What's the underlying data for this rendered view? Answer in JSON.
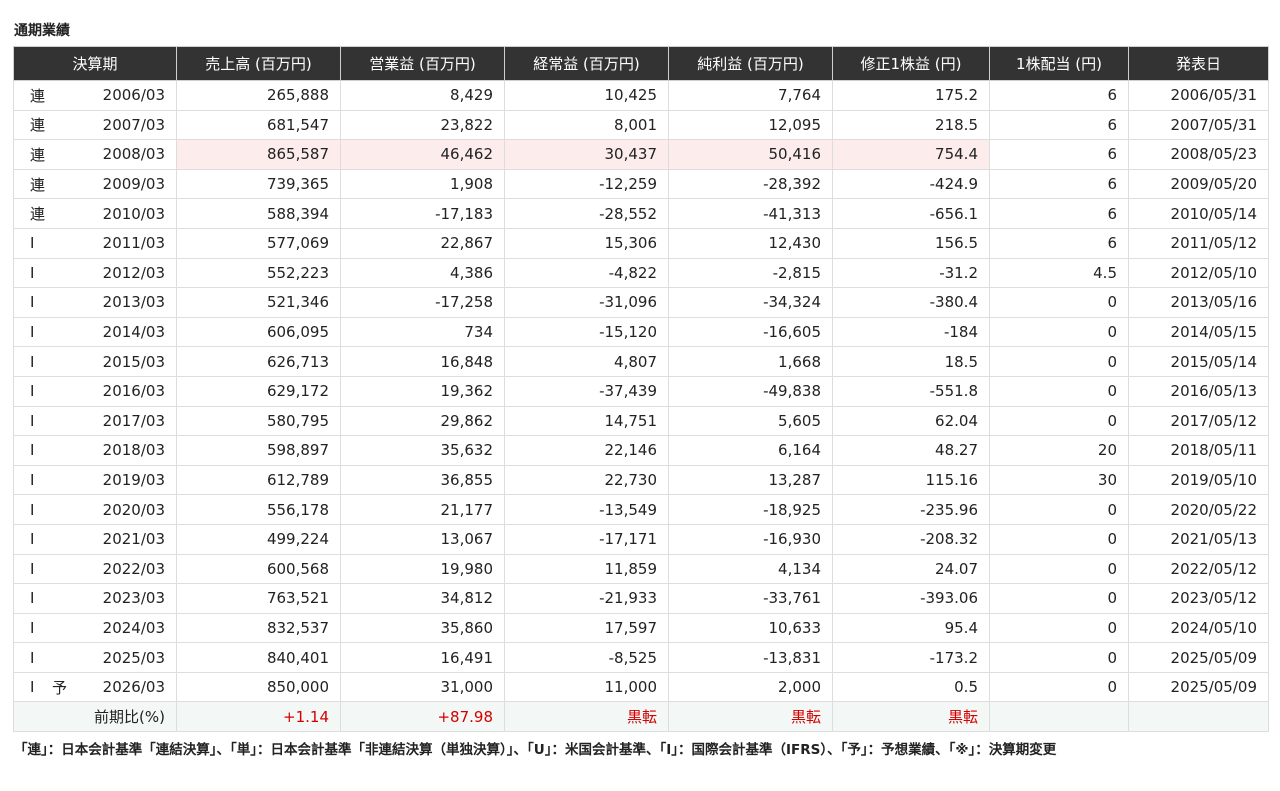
{
  "title": "通期業績",
  "columns": [
    "決算期",
    "売上高 (百万円)",
    "営業益 (百万円)",
    "経常益 (百万円)",
    "純利益 (百万円)",
    "修正1株益 (円)",
    "1株配当 (円)",
    "発表日"
  ],
  "rows": [
    {
      "acc": "連",
      "fc": "",
      "period": "2006/03",
      "sales": "265,888",
      "op": "8,429",
      "ord": "10,425",
      "net": "7,764",
      "eps": "175.2",
      "div": "6",
      "date": "2006/05/31"
    },
    {
      "acc": "連",
      "fc": "",
      "period": "2007/03",
      "sales": "681,547",
      "op": "23,822",
      "ord": "8,001",
      "net": "12,095",
      "eps": "218.5",
      "div": "6",
      "date": "2007/05/31"
    },
    {
      "acc": "連",
      "fc": "",
      "period": "2008/03",
      "sales": "865,587",
      "op": "46,462",
      "ord": "30,437",
      "net": "50,416",
      "eps": "754.4",
      "div": "6",
      "date": "2008/05/23"
    },
    {
      "acc": "連",
      "fc": "",
      "period": "2009/03",
      "sales": "739,365",
      "op": "1,908",
      "ord": "-12,259",
      "net": "-28,392",
      "eps": "-424.9",
      "div": "6",
      "date": "2009/05/20"
    },
    {
      "acc": "連",
      "fc": "",
      "period": "2010/03",
      "sales": "588,394",
      "op": "-17,183",
      "ord": "-28,552",
      "net": "-41,313",
      "eps": "-656.1",
      "div": "6",
      "date": "2010/05/14"
    },
    {
      "acc": "I",
      "fc": "",
      "period": "2011/03",
      "sales": "577,069",
      "op": "22,867",
      "ord": "15,306",
      "net": "12,430",
      "eps": "156.5",
      "div": "6",
      "date": "2011/05/12"
    },
    {
      "acc": "I",
      "fc": "",
      "period": "2012/03",
      "sales": "552,223",
      "op": "4,386",
      "ord": "-4,822",
      "net": "-2,815",
      "eps": "-31.2",
      "div": "4.5",
      "date": "2012/05/10"
    },
    {
      "acc": "I",
      "fc": "",
      "period": "2013/03",
      "sales": "521,346",
      "op": "-17,258",
      "ord": "-31,096",
      "net": "-34,324",
      "eps": "-380.4",
      "div": "0",
      "date": "2013/05/16"
    },
    {
      "acc": "I",
      "fc": "",
      "period": "2014/03",
      "sales": "606,095",
      "op": "734",
      "ord": "-15,120",
      "net": "-16,605",
      "eps": "-184",
      "div": "0",
      "date": "2014/05/15"
    },
    {
      "acc": "I",
      "fc": "",
      "period": "2015/03",
      "sales": "626,713",
      "op": "16,848",
      "ord": "4,807",
      "net": "1,668",
      "eps": "18.5",
      "div": "0",
      "date": "2015/05/14"
    },
    {
      "acc": "I",
      "fc": "",
      "period": "2016/03",
      "sales": "629,172",
      "op": "19,362",
      "ord": "-37,439",
      "net": "-49,838",
      "eps": "-551.8",
      "div": "0",
      "date": "2016/05/13"
    },
    {
      "acc": "I",
      "fc": "",
      "period": "2017/03",
      "sales": "580,795",
      "op": "29,862",
      "ord": "14,751",
      "net": "5,605",
      "eps": "62.04",
      "div": "0",
      "date": "2017/05/12"
    },
    {
      "acc": "I",
      "fc": "",
      "period": "2018/03",
      "sales": "598,897",
      "op": "35,632",
      "ord": "22,146",
      "net": "6,164",
      "eps": "48.27",
      "div": "20",
      "date": "2018/05/11"
    },
    {
      "acc": "I",
      "fc": "",
      "period": "2019/03",
      "sales": "612,789",
      "op": "36,855",
      "ord": "22,730",
      "net": "13,287",
      "eps": "115.16",
      "div": "30",
      "date": "2019/05/10"
    },
    {
      "acc": "I",
      "fc": "",
      "period": "2020/03",
      "sales": "556,178",
      "op": "21,177",
      "ord": "-13,549",
      "net": "-18,925",
      "eps": "-235.96",
      "div": "0",
      "date": "2020/05/22"
    },
    {
      "acc": "I",
      "fc": "",
      "period": "2021/03",
      "sales": "499,224",
      "op": "13,067",
      "ord": "-17,171",
      "net": "-16,930",
      "eps": "-208.32",
      "div": "0",
      "date": "2021/05/13"
    },
    {
      "acc": "I",
      "fc": "",
      "period": "2022/03",
      "sales": "600,568",
      "op": "19,980",
      "ord": "11,859",
      "net": "4,134",
      "eps": "24.07",
      "div": "0",
      "date": "2022/05/12"
    },
    {
      "acc": "I",
      "fc": "",
      "period": "2023/03",
      "sales": "763,521",
      "op": "34,812",
      "ord": "-21,933",
      "net": "-33,761",
      "eps": "-393.06",
      "div": "0",
      "date": "2023/05/12"
    },
    {
      "acc": "I",
      "fc": "",
      "period": "2024/03",
      "sales": "832,537",
      "op": "35,860",
      "ord": "17,597",
      "net": "10,633",
      "eps": "95.4",
      "div": "0",
      "date": "2024/05/10"
    },
    {
      "acc": "I",
      "fc": "",
      "period": "2025/03",
      "sales": "840,401",
      "op": "16,491",
      "ord": "-8,525",
      "net": "-13,831",
      "eps": "-173.2",
      "div": "0",
      "date": "2025/05/09"
    },
    {
      "acc": "I",
      "fc": "予",
      "period": "2026/03",
      "sales": "850,000",
      "op": "31,000",
      "ord": "11,000",
      "net": "2,000",
      "eps": "0.5",
      "div": "0",
      "date": "2025/05/09"
    }
  ],
  "highlight_row_period": "2008/03",
  "comparison": {
    "label": "前期比(%)",
    "sales": "+1.14",
    "op": "+87.98",
    "ord": "黒転",
    "net": "黒転",
    "eps": "黒転",
    "div": "",
    "date": ""
  },
  "colors": {
    "header_bg": "#333333",
    "highlight_bg": "#fcecec",
    "comparison_bg": "#f3f7f5",
    "positive_text": "#d40000"
  },
  "note": "「連」：日本会計基準「連結決算」、「単」：日本会計基準「非連結決算（単独決算）」、「U」：米国会計基準、「I」：国際会計基準（IFRS）、「予」：予想業績、「※」：決算期変更"
}
